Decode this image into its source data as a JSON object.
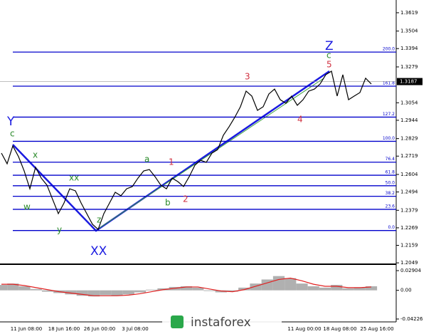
{
  "chart_data": {
    "type": "line",
    "values": [
      1.2738,
      1.2671,
      1.2783,
      1.2716,
      1.2626,
      1.2514,
      1.2649,
      1.2581,
      1.2537,
      1.2447,
      1.2358,
      1.2425,
      1.2514,
      1.2501,
      1.2425,
      1.2358,
      1.2291,
      1.2259,
      1.2358,
      1.2425,
      1.2492,
      1.247,
      1.2514,
      1.2528,
      1.2581,
      1.2626,
      1.2635,
      1.259,
      1.2537,
      1.2514,
      1.2581,
      1.2559,
      1.2528,
      1.259,
      1.2662,
      1.2693,
      1.268,
      1.2738,
      1.276,
      1.285,
      1.2903,
      1.2962,
      1.3029,
      1.3127,
      1.3096,
      1.3006,
      1.3029,
      1.3109,
      1.314,
      1.3073,
      1.3051,
      1.3096,
      1.3038,
      1.3073,
      1.3127,
      1.314,
      1.3172,
      1.323,
      1.3252,
      1.3096,
      1.323,
      1.3073,
      1.3096,
      1.3118,
      1.3208,
      1.3172
    ],
    "color": "#000000",
    "ylim": [
      1.2045,
      1.3699
    ],
    "yticks": [
      1.3619,
      1.3504,
      1.3394,
      1.3279,
      1.3054,
      1.2944,
      1.2829,
      1.2719,
      1.2604,
      1.2494,
      1.2379,
      1.2269,
      1.2159,
      1.2049
    ],
    "last_price": 1.3187,
    "fib_levels": [
      {
        "label": "0.0",
        "value": 1.2252
      },
      {
        "label": "23.6",
        "value": 1.2385
      },
      {
        "label": "38.2",
        "value": 1.2467
      },
      {
        "label": "50.0",
        "value": 1.2533
      },
      {
        "label": "61.8",
        "value": 1.2599
      },
      {
        "label": "76.4",
        "value": 1.2681
      },
      {
        "label": "100.0",
        "value": 1.2812
      },
      {
        "label": "127.2",
        "value": 1.2964
      },
      {
        "label": "161.8",
        "value": 1.3158
      },
      {
        "label": "200.0",
        "value": 1.3372
      }
    ],
    "fib_color": "#0000cc",
    "annotations": [
      "Y",
      "c",
      "x",
      "w",
      "xx",
      "y",
      "z",
      "XX",
      "a",
      "b",
      "1",
      "2",
      "3",
      "4",
      "5",
      "c",
      "Z"
    ],
    "x_tick_labels": [
      "11 Jun 08:00",
      "18 Jun 16:00",
      "26 Jun 00:00",
      "3 Jul 08:00",
      "11 Aug 00:00",
      "18 Aug 08:00",
      "25 Aug 16:00"
    ],
    "watermark": "instaforex",
    "oscillator": {
      "histogram": [
        0.008,
        0.01,
        0.006,
        0.002,
        -0.002,
        -0.004,
        -0.006,
        -0.008,
        -0.009,
        -0.007,
        -0.008,
        -0.006,
        -0.003,
        0.001,
        0.003,
        0.005,
        0.006,
        0.004,
        -0.001,
        -0.003,
        -0.002,
        0.004,
        0.01,
        0.016,
        0.021,
        0.018,
        0.01,
        0.006,
        0.004,
        0.008,
        0.003,
        0.004,
        0.006
      ],
      "signal": [
        0.009,
        0.009,
        0.007,
        0.004,
        0.001,
        -0.002,
        -0.004,
        -0.006,
        -0.008,
        -0.008,
        -0.008,
        -0.007,
        -0.005,
        -0.002,
        0.001,
        0.003,
        0.005,
        0.005,
        0.002,
        -0.001,
        -0.002,
        0.001,
        0.006,
        0.011,
        0.016,
        0.018,
        0.014,
        0.009,
        0.006,
        0.006,
        0.004,
        0.004,
        0.005
      ],
      "histogram_color": "#b0b0b0",
      "signal_color": "#e02020",
      "ylim": [
        -0.0444,
        0.0364
      ],
      "yticks": [
        0.02904,
        {
          "value": 0,
          "label": "0.00"
        },
        -0.04226
      ]
    }
  }
}
